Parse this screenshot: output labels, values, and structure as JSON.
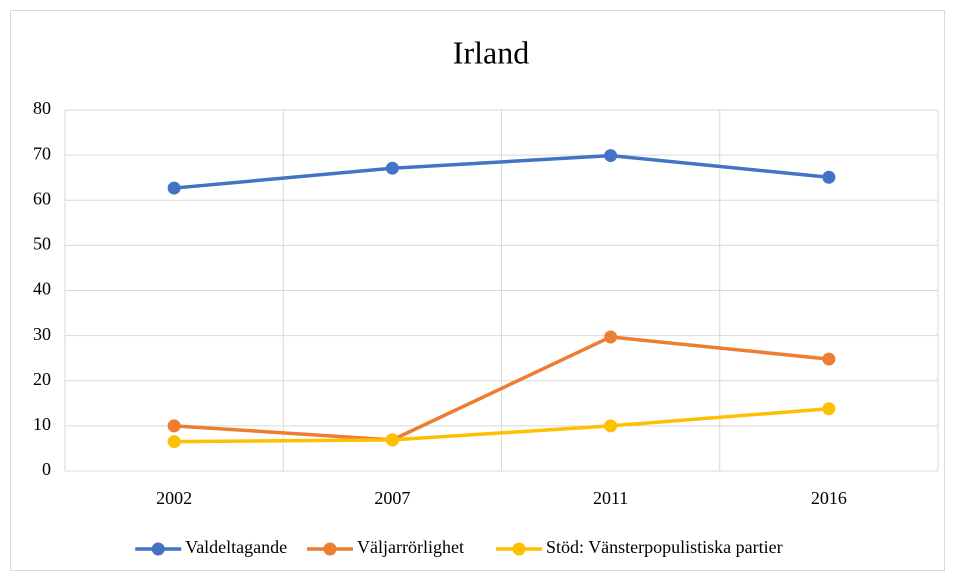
{
  "chart_data": {
    "type": "line",
    "title": "Irland",
    "categories": [
      "2002",
      "2007",
      "2011",
      "2016"
    ],
    "series": [
      {
        "name": "Valdeltagande",
        "color": "#4472c4",
        "values": [
          62.7,
          67.1,
          69.9,
          65.1
        ]
      },
      {
        "name": "Väljarrörlighet",
        "color": "#ed7d31",
        "values": [
          10.0,
          6.9,
          29.7,
          24.8
        ]
      },
      {
        "name": "Stöd: Vänsterpopulistiska partier",
        "color": "#ffc000",
        "values": [
          6.5,
          6.9,
          10.0,
          13.8
        ]
      }
    ],
    "ylim": [
      0,
      80
    ],
    "yticks": [
      0,
      10,
      20,
      30,
      40,
      50,
      60,
      70,
      80
    ],
    "grid": true,
    "legend": "bottom"
  }
}
